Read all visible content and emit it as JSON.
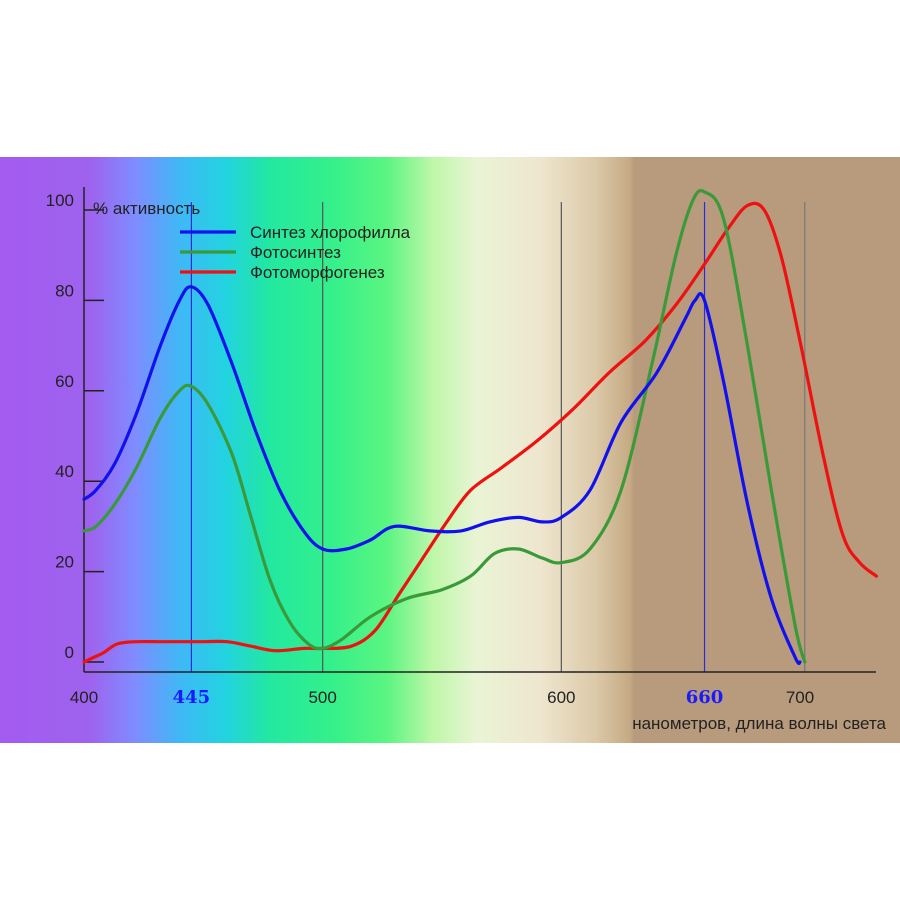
{
  "chart_data": {
    "type": "line",
    "ylabel": "% активность",
    "xlabel": "нанометров, длина волны света",
    "xlim": [
      400,
      735
    ],
    "ylim": [
      0,
      105
    ],
    "x_ticks": [
      {
        "value": 400,
        "label": "400",
        "highlight": false
      },
      {
        "value": 445,
        "label": "445",
        "highlight": true
      },
      {
        "value": 500,
        "label": "500",
        "highlight": false
      },
      {
        "value": 600,
        "label": "600",
        "highlight": false
      },
      {
        "value": 660,
        "label": "660",
        "highlight": true
      },
      {
        "value": 700,
        "label": "700",
        "highlight": false
      }
    ],
    "y_ticks": [
      {
        "value": 0,
        "label": "0"
      },
      {
        "value": 20,
        "label": "20"
      },
      {
        "value": 40,
        "label": "40"
      },
      {
        "value": 60,
        "label": "60"
      },
      {
        "value": 80,
        "label": "80"
      },
      {
        "value": 100,
        "label": "100"
      }
    ],
    "guides": [
      {
        "x": 445,
        "color": "#2a2adf"
      },
      {
        "x": 500,
        "color": "#555555"
      },
      {
        "x": 600,
        "color": "#555555"
      },
      {
        "x": 660,
        "color": "#2a2adf"
      },
      {
        "x": 702,
        "color": "#777777"
      }
    ],
    "series": [
      {
        "name": "Синтез хлорофилла",
        "color": "#1111ee",
        "x": [
          400,
          405,
          413,
          422,
          432,
          440,
          445,
          452,
          462,
          472,
          482,
          492,
          500,
          510,
          520,
          530,
          545,
          558,
          570,
          582,
          592,
          600,
          612,
          625,
          640,
          652,
          656,
          660,
          668,
          678,
          688,
          698,
          700
        ],
        "y": [
          36,
          38,
          44,
          55,
          70,
          80,
          83,
          79,
          66,
          51,
          38,
          29,
          25,
          25,
          27,
          30,
          29,
          29,
          31,
          32,
          31,
          32,
          38,
          53,
          64,
          76,
          80,
          80,
          62,
          35,
          14,
          1,
          0
        ]
      },
      {
        "name": "Фотосинтез",
        "color": "#3a9a3a",
        "x": [
          400,
          405,
          413,
          422,
          432,
          440,
          445,
          452,
          462,
          470,
          478,
          486,
          494,
          500,
          508,
          520,
          535,
          550,
          562,
          572,
          582,
          592,
          600,
          612,
          625,
          638,
          648,
          655,
          660,
          668,
          678,
          688,
          698,
          702
        ],
        "y": [
          29,
          30,
          35,
          43,
          54,
          60,
          61,
          57,
          46,
          32,
          18,
          9,
          4,
          3,
          5,
          10,
          14,
          16,
          19,
          24,
          25,
          23,
          22,
          25,
          38,
          66,
          90,
          102,
          104,
          98,
          70,
          38,
          8,
          0
        ]
      },
      {
        "name": "Фотоморфогенез",
        "color": "#ee1111",
        "x": [
          400,
          404,
          408,
          414,
          422,
          432,
          442,
          450,
          460,
          470,
          480,
          492,
          500,
          512,
          522,
          532,
          542,
          552,
          562,
          575,
          590,
          605,
          620,
          635,
          648,
          660,
          670,
          678,
          685,
          692,
          700,
          710,
          718,
          725,
          732
        ],
        "y": [
          0,
          1,
          2,
          4,
          4.5,
          4.5,
          4.5,
          4.5,
          4.5,
          3.5,
          2.5,
          3,
          3,
          3.5,
          7,
          15,
          23,
          31,
          38,
          43,
          49,
          56,
          64,
          71,
          79,
          88,
          96,
          101,
          100,
          90,
          71,
          45,
          28,
          22,
          19
        ]
      }
    ]
  }
}
